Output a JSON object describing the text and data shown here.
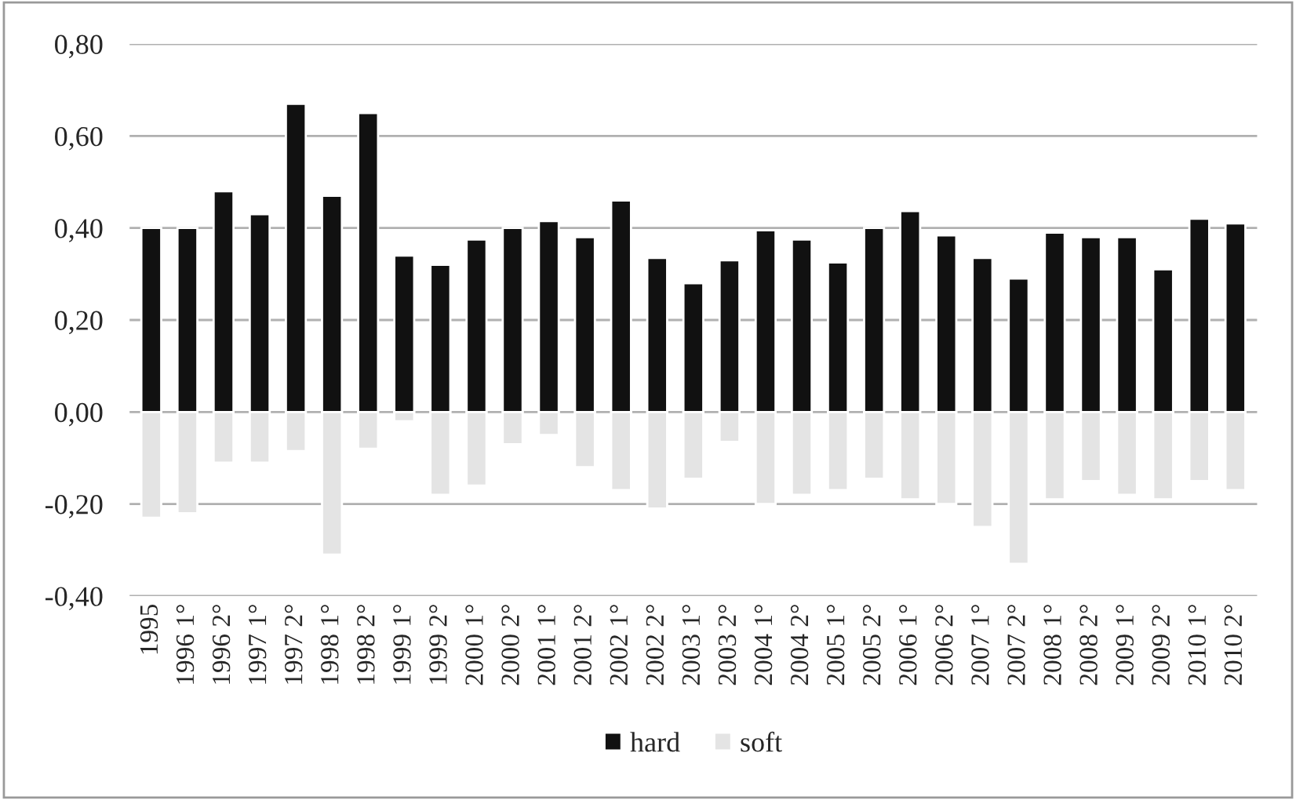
{
  "chart_data": {
    "type": "bar",
    "categories": [
      "1995",
      "1996 1°",
      "1996 2°",
      "1997 1°",
      "1997 2°",
      "1998 1°",
      "1998 2°",
      "1999 1°",
      "1999 2°",
      "2000 1°",
      "2000 2°",
      "2001 1°",
      "2001 2°",
      "2002 1°",
      "2002 2°",
      "2003 1°",
      "2003 2°",
      "2004 1°",
      "2004 2°",
      "2005 1°",
      "2005 2°",
      "2006 1°",
      "2006 2°",
      "2007 1°",
      "2007 2°",
      "2008 1°",
      "2008 2°",
      "2009 1°",
      "2009 2°",
      "2010 1°",
      "2010 2°"
    ],
    "series": [
      {
        "name": "hard",
        "color": "#111111",
        "values": [
          0.4,
          0.4,
          0.48,
          0.43,
          0.67,
          0.47,
          0.65,
          0.34,
          0.32,
          0.375,
          0.4,
          0.415,
          0.38,
          0.46,
          0.335,
          0.28,
          0.33,
          0.395,
          0.375,
          0.325,
          0.4,
          0.437,
          0.384,
          0.335,
          0.29,
          0.39,
          0.38,
          0.38,
          0.31,
          0.42,
          0.41
        ]
      },
      {
        "name": "soft",
        "color": "#e4e4e4",
        "values": [
          -0.23,
          -0.22,
          -0.11,
          -0.11,
          -0.085,
          -0.31,
          -0.08,
          -0.02,
          -0.18,
          -0.16,
          -0.07,
          -0.05,
          -0.12,
          -0.17,
          -0.21,
          -0.145,
          -0.065,
          -0.2,
          -0.18,
          -0.17,
          -0.145,
          -0.19,
          -0.2,
          -0.25,
          -0.33,
          -0.19,
          -0.15,
          -0.18,
          -0.19,
          -0.15,
          -0.17
        ]
      }
    ],
    "ylim": [
      -0.4,
      0.8
    ],
    "yticks": [
      {
        "value": -0.4,
        "label": "-0,40"
      },
      {
        "value": -0.2,
        "label": "-0,20"
      },
      {
        "value": 0,
        "label": "0,00"
      },
      {
        "value": 0.2,
        "label": "0,20"
      },
      {
        "value": 0.4,
        "label": "0,40"
      },
      {
        "value": 0.6,
        "label": "0,60"
      },
      {
        "value": 0.8,
        "label": "0,80"
      }
    ],
    "stacked": true,
    "grid": "y",
    "legend": "bottom"
  }
}
